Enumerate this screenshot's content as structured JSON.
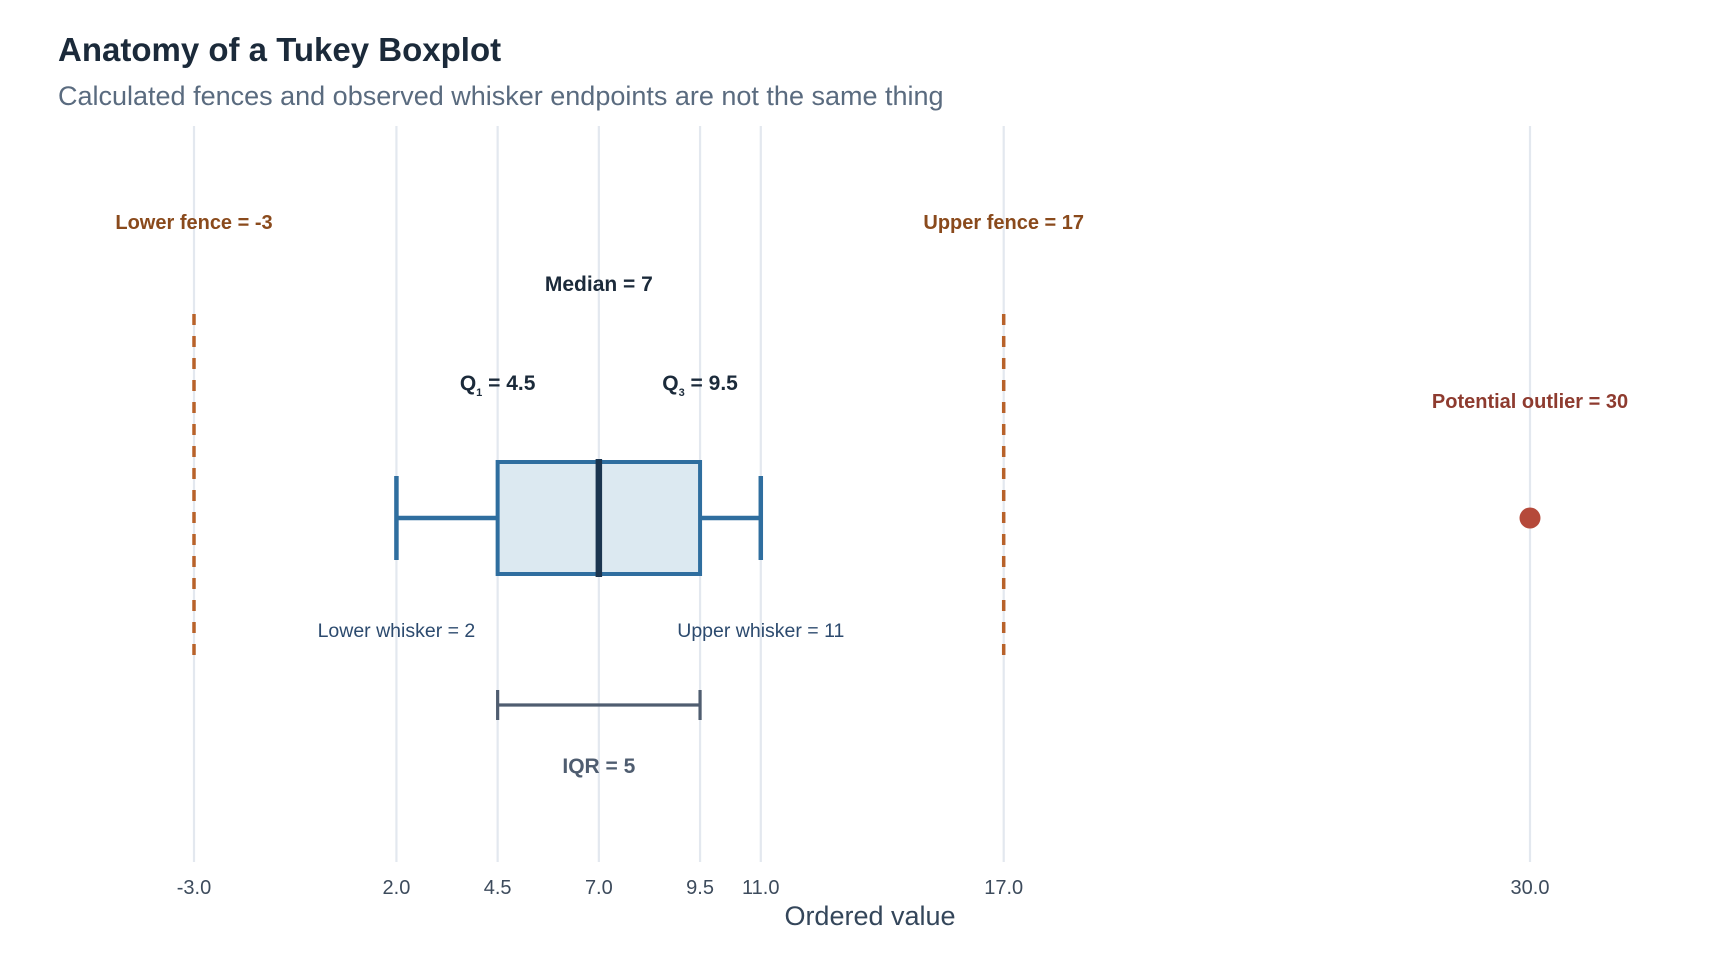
{
  "title": "Anatomy of a Tukey Boxplot",
  "subtitle": "Calculated fences and observed whisker endpoints are not the same thing",
  "chart_data": {
    "type": "boxplot",
    "xlabel": "Ordered value",
    "xlim": [
      -3.0,
      30.0
    ],
    "grid": true,
    "x_ticks": [
      -3.0,
      2.0,
      4.5,
      7.0,
      9.5,
      11.0,
      17.0,
      30.0
    ],
    "x_tick_labels": [
      "-3.0",
      "2.0",
      "4.5",
      "7.0",
      "9.5",
      "11.0",
      "17.0",
      "30.0"
    ],
    "box": {
      "q1": 4.5,
      "median": 7,
      "q3": 9.5,
      "lower_whisker": 2,
      "upper_whisker": 11,
      "iqr": 5
    },
    "fences": {
      "lower": -3,
      "upper": 17
    },
    "outliers": [
      30
    ],
    "labels": {
      "lower_fence": "Lower fence = -3",
      "upper_fence": "Upper fence = 17",
      "median": "Median = 7",
      "q1_letter": "Q",
      "q1_sub": "1",
      "q1_value": " = 4.5",
      "q3_letter": "Q",
      "q3_sub": "3",
      "q3_value": " = 9.5",
      "lower_whisker": "Lower whisker = 2",
      "upper_whisker": "Upper whisker = 11",
      "iqr": "IQR = 5",
      "outlier": "Potential outlier = 30"
    }
  }
}
